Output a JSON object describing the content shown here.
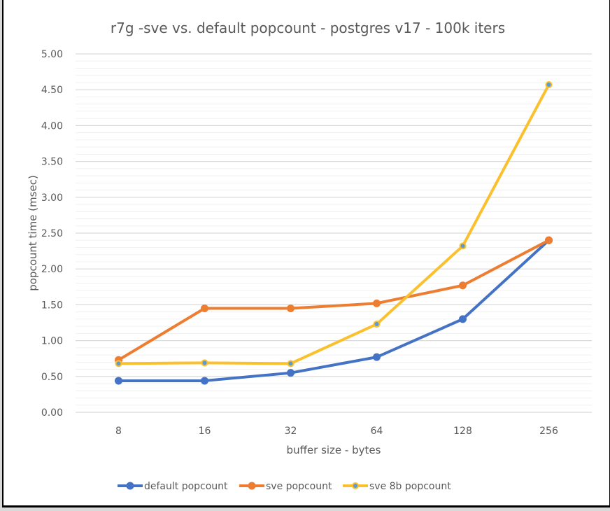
{
  "chart_data": {
    "type": "line",
    "title": "r7g -sve vs. default popcount - postgres v17 - 100k iters",
    "xlabel": "buffer size - bytes",
    "ylabel": "popcount time (msec)",
    "categories": [
      "8",
      "16",
      "32",
      "64",
      "128",
      "256"
    ],
    "ylim": [
      0,
      5
    ],
    "yticks": [
      "0.00",
      "0.50",
      "1.00",
      "1.50",
      "2.00",
      "2.50",
      "3.00",
      "3.50",
      "4.00",
      "4.50",
      "5.00"
    ],
    "grid": true,
    "legend": "bottom",
    "series": [
      {
        "name": "default popcount",
        "color": "#4472c4",
        "marker": "#4472c4",
        "values": [
          0.44,
          0.44,
          0.55,
          0.77,
          1.3,
          2.4
        ]
      },
      {
        "name": "sve popcount",
        "color": "#ed7d31",
        "marker": "#ed7d31",
        "values": [
          0.73,
          1.45,
          1.45,
          1.52,
          1.77,
          2.4
        ]
      },
      {
        "name": "sve 8b popcount",
        "color": "#fbc02d",
        "marker": "#5b9bd5",
        "values": [
          0.68,
          0.69,
          0.68,
          1.23,
          2.32,
          4.57
        ]
      }
    ]
  }
}
